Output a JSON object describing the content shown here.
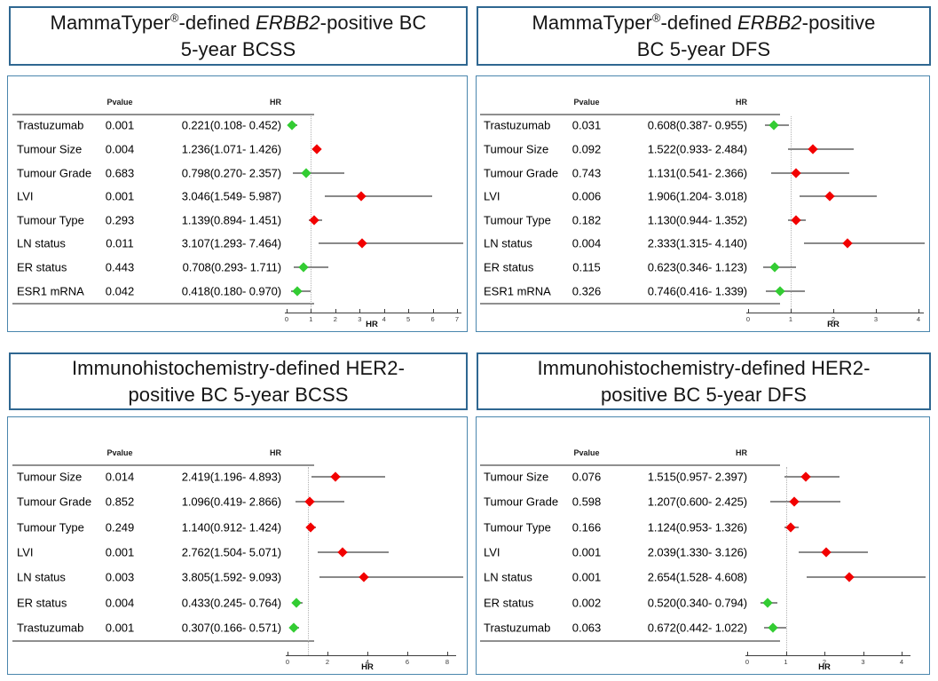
{
  "colors": {
    "risk_increase_marker": "#f20000",
    "risk_decrease_marker": "#33cc33",
    "ci_line": "#898989",
    "title_border": "#2f6791",
    "plot_border": "#4a86ad"
  },
  "chart_data": [
    {
      "type": "scatter",
      "subtype": "forest-plot",
      "title_lines": [
        "MammaTyper®-defined ERBB2-positive BC",
        "5-year BCSS"
      ],
      "title_italic": "ERBB2",
      "col_pvalue": "Pvalue",
      "col_hr": "HR",
      "xlabel": "HR",
      "xlim": [
        0,
        7
      ],
      "xticks": [
        0,
        1,
        2,
        3,
        4,
        5,
        6,
        7
      ],
      "ref_line": 1,
      "rows": [
        {
          "label": "Trastuzumab",
          "pvalue": "0.001",
          "ci_text": "0.221(0.108- 0.452)",
          "hr": 0.221,
          "lo": 0.108,
          "hi": 0.452,
          "direction": "decrease"
        },
        {
          "label": "Tumour Size",
          "pvalue": "0.004",
          "ci_text": "1.236(1.071- 1.426)",
          "hr": 1.236,
          "lo": 1.071,
          "hi": 1.426,
          "direction": "increase"
        },
        {
          "label": "Tumour Grade",
          "pvalue": "0.683",
          "ci_text": "0.798(0.270- 2.357)",
          "hr": 0.798,
          "lo": 0.27,
          "hi": 2.357,
          "direction": "decrease"
        },
        {
          "label": "LVI",
          "pvalue": "0.001",
          "ci_text": "3.046(1.549- 5.987)",
          "hr": 3.046,
          "lo": 1.549,
          "hi": 5.987,
          "direction": "increase"
        },
        {
          "label": "Tumour Type",
          "pvalue": "0.293",
          "ci_text": "1.139(0.894- 1.451)",
          "hr": 1.139,
          "lo": 0.894,
          "hi": 1.451,
          "direction": "increase"
        },
        {
          "label": "LN status",
          "pvalue": "0.011",
          "ci_text": "3.107(1.293- 7.464)",
          "hr": 3.107,
          "lo": 1.293,
          "hi": 7.464,
          "direction": "increase"
        },
        {
          "label": "ER status",
          "pvalue": "0.443",
          "ci_text": "0.708(0.293- 1.711)",
          "hr": 0.708,
          "lo": 0.293,
          "hi": 1.711,
          "direction": "decrease"
        },
        {
          "label": "ESR1 mRNA",
          "pvalue": "0.042",
          "ci_text": "0.418(0.180- 0.970)",
          "hr": 0.418,
          "lo": 0.18,
          "hi": 0.97,
          "direction": "decrease"
        }
      ]
    },
    {
      "type": "scatter",
      "subtype": "forest-plot",
      "title_lines": [
        "MammaTyper®-defined ERBB2-positive",
        "BC 5-year DFS"
      ],
      "title_italic": "ERBB2",
      "col_pvalue": "Pvalue",
      "col_hr": "HR",
      "xlabel": "RR",
      "xlim": [
        0,
        4
      ],
      "xticks": [
        0,
        1,
        2,
        3,
        4
      ],
      "ref_line": 1,
      "rows": [
        {
          "label": "Trastuzumab",
          "pvalue": "0.031",
          "ci_text": "0.608(0.387- 0.955)",
          "hr": 0.608,
          "lo": 0.387,
          "hi": 0.955,
          "direction": "decrease"
        },
        {
          "label": "Tumour Size",
          "pvalue": "0.092",
          "ci_text": "1.522(0.933- 2.484)",
          "hr": 1.522,
          "lo": 0.933,
          "hi": 2.484,
          "direction": "increase"
        },
        {
          "label": "Tumour Grade",
          "pvalue": "0.743",
          "ci_text": "1.131(0.541- 2.366)",
          "hr": 1.131,
          "lo": 0.541,
          "hi": 2.366,
          "direction": "increase"
        },
        {
          "label": "LVI",
          "pvalue": "0.006",
          "ci_text": "1.906(1.204- 3.018)",
          "hr": 1.906,
          "lo": 1.204,
          "hi": 3.018,
          "direction": "increase"
        },
        {
          "label": "Tumour Type",
          "pvalue": "0.182",
          "ci_text": "1.130(0.944- 1.352)",
          "hr": 1.13,
          "lo": 0.944,
          "hi": 1.352,
          "direction": "increase"
        },
        {
          "label": "LN status",
          "pvalue": "0.004",
          "ci_text": "2.333(1.315- 4.140)",
          "hr": 2.333,
          "lo": 1.315,
          "hi": 4.14,
          "direction": "increase"
        },
        {
          "label": "ER status",
          "pvalue": "0.115",
          "ci_text": "0.623(0.346- 1.123)",
          "hr": 0.623,
          "lo": 0.346,
          "hi": 1.123,
          "direction": "decrease"
        },
        {
          "label": "ESR1 mRNA",
          "pvalue": "0.326",
          "ci_text": "0.746(0.416- 1.339)",
          "hr": 0.746,
          "lo": 0.416,
          "hi": 1.339,
          "direction": "decrease"
        }
      ]
    },
    {
      "type": "scatter",
      "subtype": "forest-plot",
      "title_lines": [
        "Immunohistochemistry-defined HER2-",
        "positive BC 5-year BCSS"
      ],
      "title_italic": "",
      "col_pvalue": "Pvalue",
      "col_hr": "HR",
      "xlabel": "HR",
      "xlim": [
        0,
        8
      ],
      "xticks": [
        0,
        2,
        4,
        6,
        8
      ],
      "ref_line": 1,
      "rows": [
        {
          "label": "Tumour Size",
          "pvalue": "0.014",
          "ci_text": "2.419(1.196- 4.893)",
          "hr": 2.419,
          "lo": 1.196,
          "hi": 4.893,
          "direction": "increase"
        },
        {
          "label": "Tumour Grade",
          "pvalue": "0.852",
          "ci_text": "1.096(0.419- 2.866)",
          "hr": 1.096,
          "lo": 0.419,
          "hi": 2.866,
          "direction": "increase"
        },
        {
          "label": "Tumour Type",
          "pvalue": "0.249",
          "ci_text": "1.140(0.912- 1.424)",
          "hr": 1.14,
          "lo": 0.912,
          "hi": 1.424,
          "direction": "increase"
        },
        {
          "label": "LVI",
          "pvalue": "0.001",
          "ci_text": "2.762(1.504- 5.071)",
          "hr": 2.762,
          "lo": 1.504,
          "hi": 5.071,
          "direction": "increase"
        },
        {
          "label": "LN status",
          "pvalue": "0.003",
          "ci_text": "3.805(1.592- 9.093)",
          "hr": 3.805,
          "lo": 1.592,
          "hi": 9.093,
          "direction": "increase"
        },
        {
          "label": "ER status",
          "pvalue": "0.004",
          "ci_text": "0.433(0.245- 0.764)",
          "hr": 0.433,
          "lo": 0.245,
          "hi": 0.764,
          "direction": "decrease"
        },
        {
          "label": "Trastuzumab",
          "pvalue": "0.001",
          "ci_text": "0.307(0.166- 0.571)",
          "hr": 0.307,
          "lo": 0.166,
          "hi": 0.571,
          "direction": "decrease"
        }
      ]
    },
    {
      "type": "scatter",
      "subtype": "forest-plot",
      "title_lines": [
        "Immunohistochemistry-defined HER2-",
        "positive BC 5-year DFS"
      ],
      "title_italic": "",
      "col_pvalue": "Pvalue",
      "col_hr": "HR",
      "xlabel": "HR",
      "xlim": [
        0,
        4
      ],
      "xticks": [
        0,
        1,
        2,
        3,
        4
      ],
      "ref_line": 1,
      "rows": [
        {
          "label": "Tumour Size",
          "pvalue": "0.076",
          "ci_text": "1.515(0.957- 2.397)",
          "hr": 1.515,
          "lo": 0.957,
          "hi": 2.397,
          "direction": "increase"
        },
        {
          "label": "Tumour Grade",
          "pvalue": "0.598",
          "ci_text": "1.207(0.600- 2.425)",
          "hr": 1.207,
          "lo": 0.6,
          "hi": 2.425,
          "direction": "increase"
        },
        {
          "label": "Tumour Type",
          "pvalue": "0.166",
          "ci_text": "1.124(0.953- 1.326)",
          "hr": 1.124,
          "lo": 0.953,
          "hi": 1.326,
          "direction": "increase"
        },
        {
          "label": "LVI",
          "pvalue": "0.001",
          "ci_text": "2.039(1.330- 3.126)",
          "hr": 2.039,
          "lo": 1.33,
          "hi": 3.126,
          "direction": "increase"
        },
        {
          "label": "LN status",
          "pvalue": "0.001",
          "ci_text": "2.654(1.528- 4.608)",
          "hr": 2.654,
          "lo": 1.528,
          "hi": 4.608,
          "direction": "increase"
        },
        {
          "label": "ER status",
          "pvalue": "0.002",
          "ci_text": "0.520(0.340- 0.794)",
          "hr": 0.52,
          "lo": 0.34,
          "hi": 0.794,
          "direction": "decrease"
        },
        {
          "label": "Trastuzumab",
          "pvalue": "0.063",
          "ci_text": "0.672(0.442- 1.022)",
          "hr": 0.672,
          "lo": 0.442,
          "hi": 1.022,
          "direction": "decrease"
        }
      ]
    }
  ]
}
